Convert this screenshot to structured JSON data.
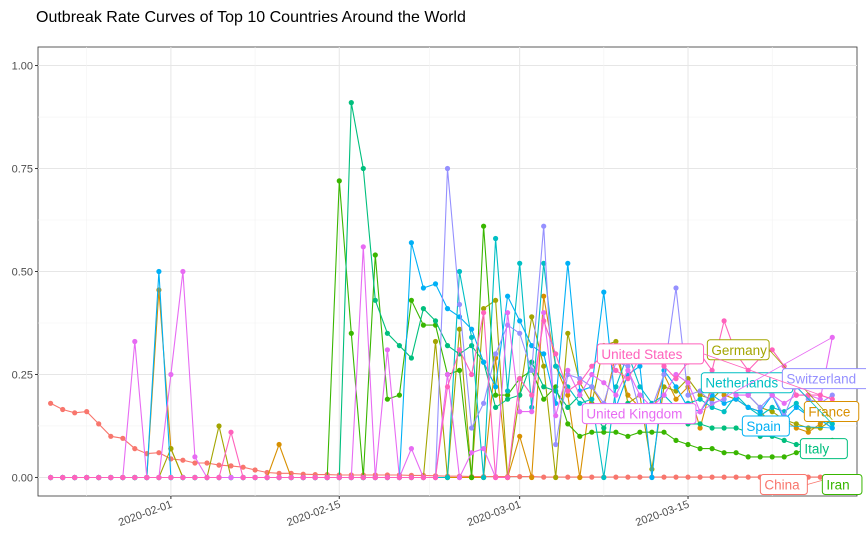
{
  "chart_data": {
    "type": "line",
    "title": "Outbreak Rate Curves of Top 10 Countries Around the World",
    "xlabel": "",
    "ylabel": "",
    "x_start": "2020-01-22",
    "x_end": "2020-03-27",
    "xlim": [
      "2020-01-22",
      "2020-03-28"
    ],
    "ylim": [
      0,
      1
    ],
    "y_ticks": [
      0,
      0.25,
      0.5,
      0.75,
      1.0
    ],
    "y_tick_labels": [
      "0.00",
      "0.25",
      "0.50",
      "0.75",
      "1.00"
    ],
    "x_ticks": [
      "2020-02-01",
      "2020-02-15",
      "2020-03-01",
      "2020-03-15"
    ],
    "grid": true,
    "legend": "none (direct labels at line ends)",
    "series": [
      {
        "name": "China",
        "color": "#F8766D",
        "label_y": 0.0,
        "values": [
          0.18,
          0.165,
          0.157,
          0.16,
          0.13,
          0.1,
          0.095,
          0.07,
          0.058,
          0.06,
          0.045,
          0.042,
          0.035,
          0.035,
          0.03,
          0.028,
          0.025,
          0.018,
          0.012,
          0.01,
          0.01,
          0.008,
          0.007,
          0.007,
          0.006,
          0.006,
          0.006,
          0.006,
          0.006,
          0.006,
          0.005,
          0.005,
          0.004,
          0.003,
          0.003,
          0.002,
          0.002,
          0.002,
          0.002,
          0.002,
          0.002,
          0.001,
          0.001,
          0.001,
          0.001,
          0.001,
          0.001,
          0.001,
          0.001,
          0.001,
          0.001,
          0.001,
          0.001,
          0.001,
          0.001,
          0.001,
          0.001,
          0.001,
          0.001,
          0.001,
          0.001,
          0.001,
          0.001,
          0.001,
          0.001,
          0.0
        ]
      },
      {
        "name": "France",
        "color": "#D89000",
        "label_y": 0.16,
        "values": [
          0.0,
          0.0,
          0.0,
          0.0,
          0.0,
          0.0,
          0.0,
          0.0,
          0.0,
          0.455,
          0.07,
          0.0,
          0.0,
          0.0,
          0.0,
          0.0,
          0.0,
          0.0,
          0.0,
          0.08,
          0.0,
          0.0,
          0.0,
          0.0,
          0.0,
          0.0,
          0.0,
          0.0,
          0.0,
          0.0,
          0.0,
          0.0,
          0.0,
          0.0,
          0.0,
          0.0,
          0.0,
          0.29,
          0.0,
          0.1,
          0.0,
          0.44,
          0.27,
          0.2,
          0.0,
          0.22,
          0.17,
          0.3,
          0.2,
          0.17,
          0.15,
          0.25,
          0.19,
          0.22,
          0.12,
          0.23,
          0.2,
          0.19,
          0.17,
          0.16,
          0.13,
          0.14,
          0.12,
          0.11,
          0.13,
          0.15
        ]
      },
      {
        "name": "Germany",
        "color": "#A3A500",
        "label_y": 0.31,
        "values": [
          0.0,
          0.0,
          0.0,
          0.0,
          0.0,
          0.0,
          0.0,
          0.0,
          0.0,
          0.0,
          0.07,
          0.0,
          0.0,
          0.0,
          0.125,
          0.0,
          0.0,
          0.0,
          0.0,
          0.0,
          0.0,
          0.0,
          0.0,
          0.0,
          0.0,
          0.0,
          0.0,
          0.0,
          0.0,
          0.0,
          0.0,
          0.0,
          0.33,
          0.0,
          0.36,
          0.0,
          0.41,
          0.43,
          0.0,
          0.2,
          0.39,
          0.27,
          0.0,
          0.35,
          0.23,
          0.18,
          0.32,
          0.33,
          0.18,
          0.2,
          0.02,
          0.22,
          0.21,
          0.24,
          0.2,
          0.19,
          0.22,
          0.23,
          0.2,
          0.17,
          0.16,
          0.14,
          0.13,
          0.12,
          0.12,
          0.14
        ]
      },
      {
        "name": "Iran",
        "color": "#39B600",
        "label_y": 0.0,
        "values": [
          0.0,
          0.0,
          0.0,
          0.0,
          0.0,
          0.0,
          0.0,
          0.0,
          0.0,
          0.0,
          0.0,
          0.0,
          0.0,
          0.0,
          0.0,
          0.0,
          0.0,
          0.0,
          0.0,
          0.0,
          0.0,
          0.0,
          0.0,
          0.0,
          0.72,
          0.35,
          0.0,
          0.54,
          0.19,
          0.2,
          0.43,
          0.37,
          0.37,
          0.25,
          0.26,
          0.0,
          0.61,
          0.2,
          0.2,
          0.24,
          0.26,
          0.19,
          0.22,
          0.13,
          0.1,
          0.11,
          0.11,
          0.11,
          0.1,
          0.11,
          0.11,
          0.11,
          0.09,
          0.08,
          0.07,
          0.07,
          0.06,
          0.06,
          0.05,
          0.05,
          0.05,
          0.05,
          0.06,
          0.07,
          0.08,
          0.09
        ]
      },
      {
        "name": "Italy",
        "color": "#00BF7D",
        "label_y": 0.07,
        "values": [
          0.0,
          0.0,
          0.0,
          0.0,
          0.0,
          0.0,
          0.0,
          0.0,
          0.0,
          0.0,
          0.0,
          0.0,
          0.0,
          0.0,
          0.0,
          0.0,
          0.0,
          0.0,
          0.0,
          0.0,
          0.0,
          0.0,
          0.0,
          0.0,
          0.0,
          0.91,
          0.75,
          0.43,
          0.35,
          0.32,
          0.29,
          0.41,
          0.38,
          0.32,
          0.3,
          0.32,
          0.28,
          0.17,
          0.19,
          0.2,
          0.28,
          0.22,
          0.21,
          0.17,
          0.2,
          0.16,
          0.12,
          0.17,
          0.18,
          0.17,
          0.16,
          0.16,
          0.14,
          0.13,
          0.13,
          0.12,
          0.12,
          0.12,
          0.11,
          0.1,
          0.1,
          0.09,
          0.08,
          0.08,
          0.07,
          0.07
        ]
      },
      {
        "name": "Netherlands",
        "color": "#00BFC4",
        "label_y": 0.23,
        "values": [
          0.0,
          0.0,
          0.0,
          0.0,
          0.0,
          0.0,
          0.0,
          0.0,
          0.0,
          0.0,
          0.0,
          0.0,
          0.0,
          0.0,
          0.0,
          0.0,
          0.0,
          0.0,
          0.0,
          0.0,
          0.0,
          0.0,
          0.0,
          0.0,
          0.0,
          0.0,
          0.0,
          0.0,
          0.0,
          0.0,
          0.0,
          0.0,
          0.0,
          0.0,
          0.5,
          0.34,
          0.0,
          0.58,
          0.21,
          0.52,
          0.17,
          0.52,
          0.27,
          0.22,
          0.18,
          0.19,
          0.0,
          0.22,
          0.3,
          0.22,
          0.18,
          0.2,
          0.17,
          0.18,
          0.19,
          0.17,
          0.16,
          0.2,
          0.17,
          0.15,
          0.17,
          0.16,
          0.18,
          0.15,
          0.14,
          0.13
        ]
      },
      {
        "name": "Spain",
        "color": "#00B0F6",
        "label_y": 0.125,
        "values": [
          0.0,
          0.0,
          0.0,
          0.0,
          0.0,
          0.0,
          0.0,
          0.0,
          0.0,
          0.5,
          0.0,
          0.0,
          0.0,
          0.0,
          0.0,
          0.0,
          0.0,
          0.0,
          0.0,
          0.0,
          0.0,
          0.0,
          0.0,
          0.0,
          0.0,
          0.0,
          0.0,
          0.0,
          0.0,
          0.0,
          0.57,
          0.46,
          0.47,
          0.41,
          0.39,
          0.36,
          0.28,
          0.22,
          0.44,
          0.38,
          0.32,
          0.3,
          0.18,
          0.52,
          0.21,
          0.22,
          0.45,
          0.17,
          0.25,
          0.27,
          0.0,
          0.26,
          0.22,
          0.17,
          0.16,
          0.2,
          0.18,
          0.19,
          0.17,
          0.16,
          0.2,
          0.14,
          0.17,
          0.15,
          0.14,
          0.12
        ]
      },
      {
        "name": "Switzerland",
        "color": "#9590FF",
        "label_y": 0.24,
        "values": [
          0.0,
          0.0,
          0.0,
          0.0,
          0.0,
          0.0,
          0.0,
          0.0,
          0.0,
          0.0,
          0.0,
          0.0,
          0.0,
          0.0,
          0.0,
          0.0,
          0.0,
          0.0,
          0.0,
          0.0,
          0.0,
          0.0,
          0.0,
          0.0,
          0.0,
          0.0,
          0.0,
          0.0,
          0.0,
          0.0,
          0.0,
          0.0,
          0.0,
          0.75,
          0.42,
          0.12,
          0.18,
          0.3,
          0.37,
          0.35,
          0.26,
          0.61,
          0.08,
          0.25,
          0.24,
          0.22,
          0.18,
          0.28,
          0.27,
          0.16,
          0.17,
          0.25,
          0.46,
          0.2,
          0.21,
          0.18,
          0.19,
          0.23,
          0.2,
          0.17,
          0.2,
          0.15,
          0.22,
          0.19,
          0.18,
          0.2
        ]
      },
      {
        "name": "United Kingdom",
        "color": "#E76BF3",
        "label_y": 0.155,
        "values": [
          0.0,
          0.0,
          0.0,
          0.0,
          0.0,
          0.0,
          0.0,
          0.33,
          0.0,
          0.0,
          0.25,
          0.5,
          0.05,
          0.0,
          0.0,
          0.0,
          0.0,
          0.0,
          0.0,
          0.0,
          0.0,
          0.0,
          0.0,
          0.0,
          0.0,
          0.0,
          0.56,
          0.0,
          0.31,
          0.0,
          0.07,
          0.0,
          0.0,
          0.25,
          0.0,
          0.06,
          0.07,
          0.0,
          0.4,
          0.16,
          0.16,
          0.4,
          0.15,
          0.26,
          0.2,
          0.25,
          0.23,
          0.2,
          0.26,
          0.2,
          0.17,
          0.2,
          0.25,
          0.23,
          0.16,
          0.21,
          0.22,
          0.2,
          0.2,
          0.22,
          0.2,
          0.18,
          0.2,
          0.2,
          0.19,
          0.34
        ]
      },
      {
        "name": "United States",
        "color": "#FF62BC",
        "label_y": 0.3,
        "values": [
          0.0,
          0.0,
          0.0,
          0.0,
          0.0,
          0.0,
          0.0,
          0.0,
          0.0,
          0.0,
          0.0,
          0.0,
          0.0,
          0.0,
          0.0,
          0.11,
          0.0,
          0.0,
          0.0,
          0.0,
          0.0,
          0.0,
          0.0,
          0.0,
          0.0,
          0.0,
          0.0,
          0.0,
          0.0,
          0.0,
          0.0,
          0.0,
          0.0,
          0.22,
          0.31,
          0.25,
          0.4,
          0.0,
          0.0,
          0.24,
          0.2,
          0.38,
          0.3,
          0.21,
          0.23,
          0.27,
          0.3,
          0.26,
          0.24,
          0.29,
          0.3,
          0.27,
          0.24,
          0.28,
          0.3,
          0.26,
          0.38,
          0.3,
          0.26,
          0.29,
          0.31,
          0.27,
          0.2,
          0.2,
          0.2,
          0.19
        ]
      }
    ]
  }
}
